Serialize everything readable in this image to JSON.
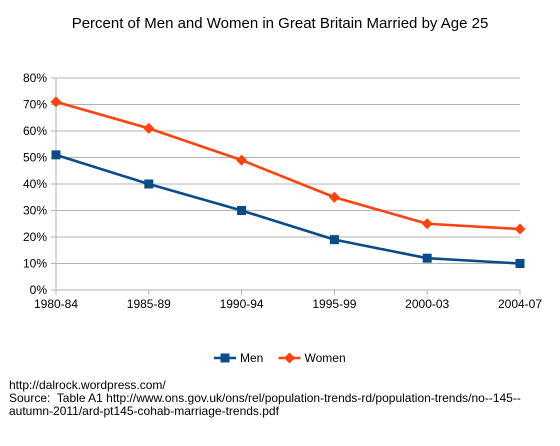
{
  "chart_data": {
    "type": "line",
    "title": "Percent of Men and Women in Great Britain Married by Age 25",
    "xlabel": "",
    "ylabel": "",
    "categories": [
      "1980-84",
      "1985-89",
      "1990-94",
      "1995-99",
      "2000-03",
      "2004-07"
    ],
    "ylim": [
      0,
      80
    ],
    "y_ticks": [
      0,
      10,
      20,
      30,
      40,
      50,
      60,
      70,
      80
    ],
    "y_tick_format": "percent",
    "grid": true,
    "legend_position": "bottom",
    "series": [
      {
        "name": "Men",
        "values": [
          51,
          40,
          30,
          19,
          12,
          10
        ],
        "color": "#0b4b8a",
        "marker": "square"
      },
      {
        "name": "Women",
        "values": [
          71,
          61,
          49,
          35,
          25,
          23
        ],
        "color": "#ff420e",
        "marker": "diamond"
      }
    ]
  },
  "footer": {
    "url": "http://dalrock.wordpress.com/",
    "source": "Source:  Table A1 http://www.ons.gov.uk/ons/rel/population-trends-rd/population-trends/no--145--autumn-2011/ard-pt145-cohab-marriage-trends.pdf"
  }
}
